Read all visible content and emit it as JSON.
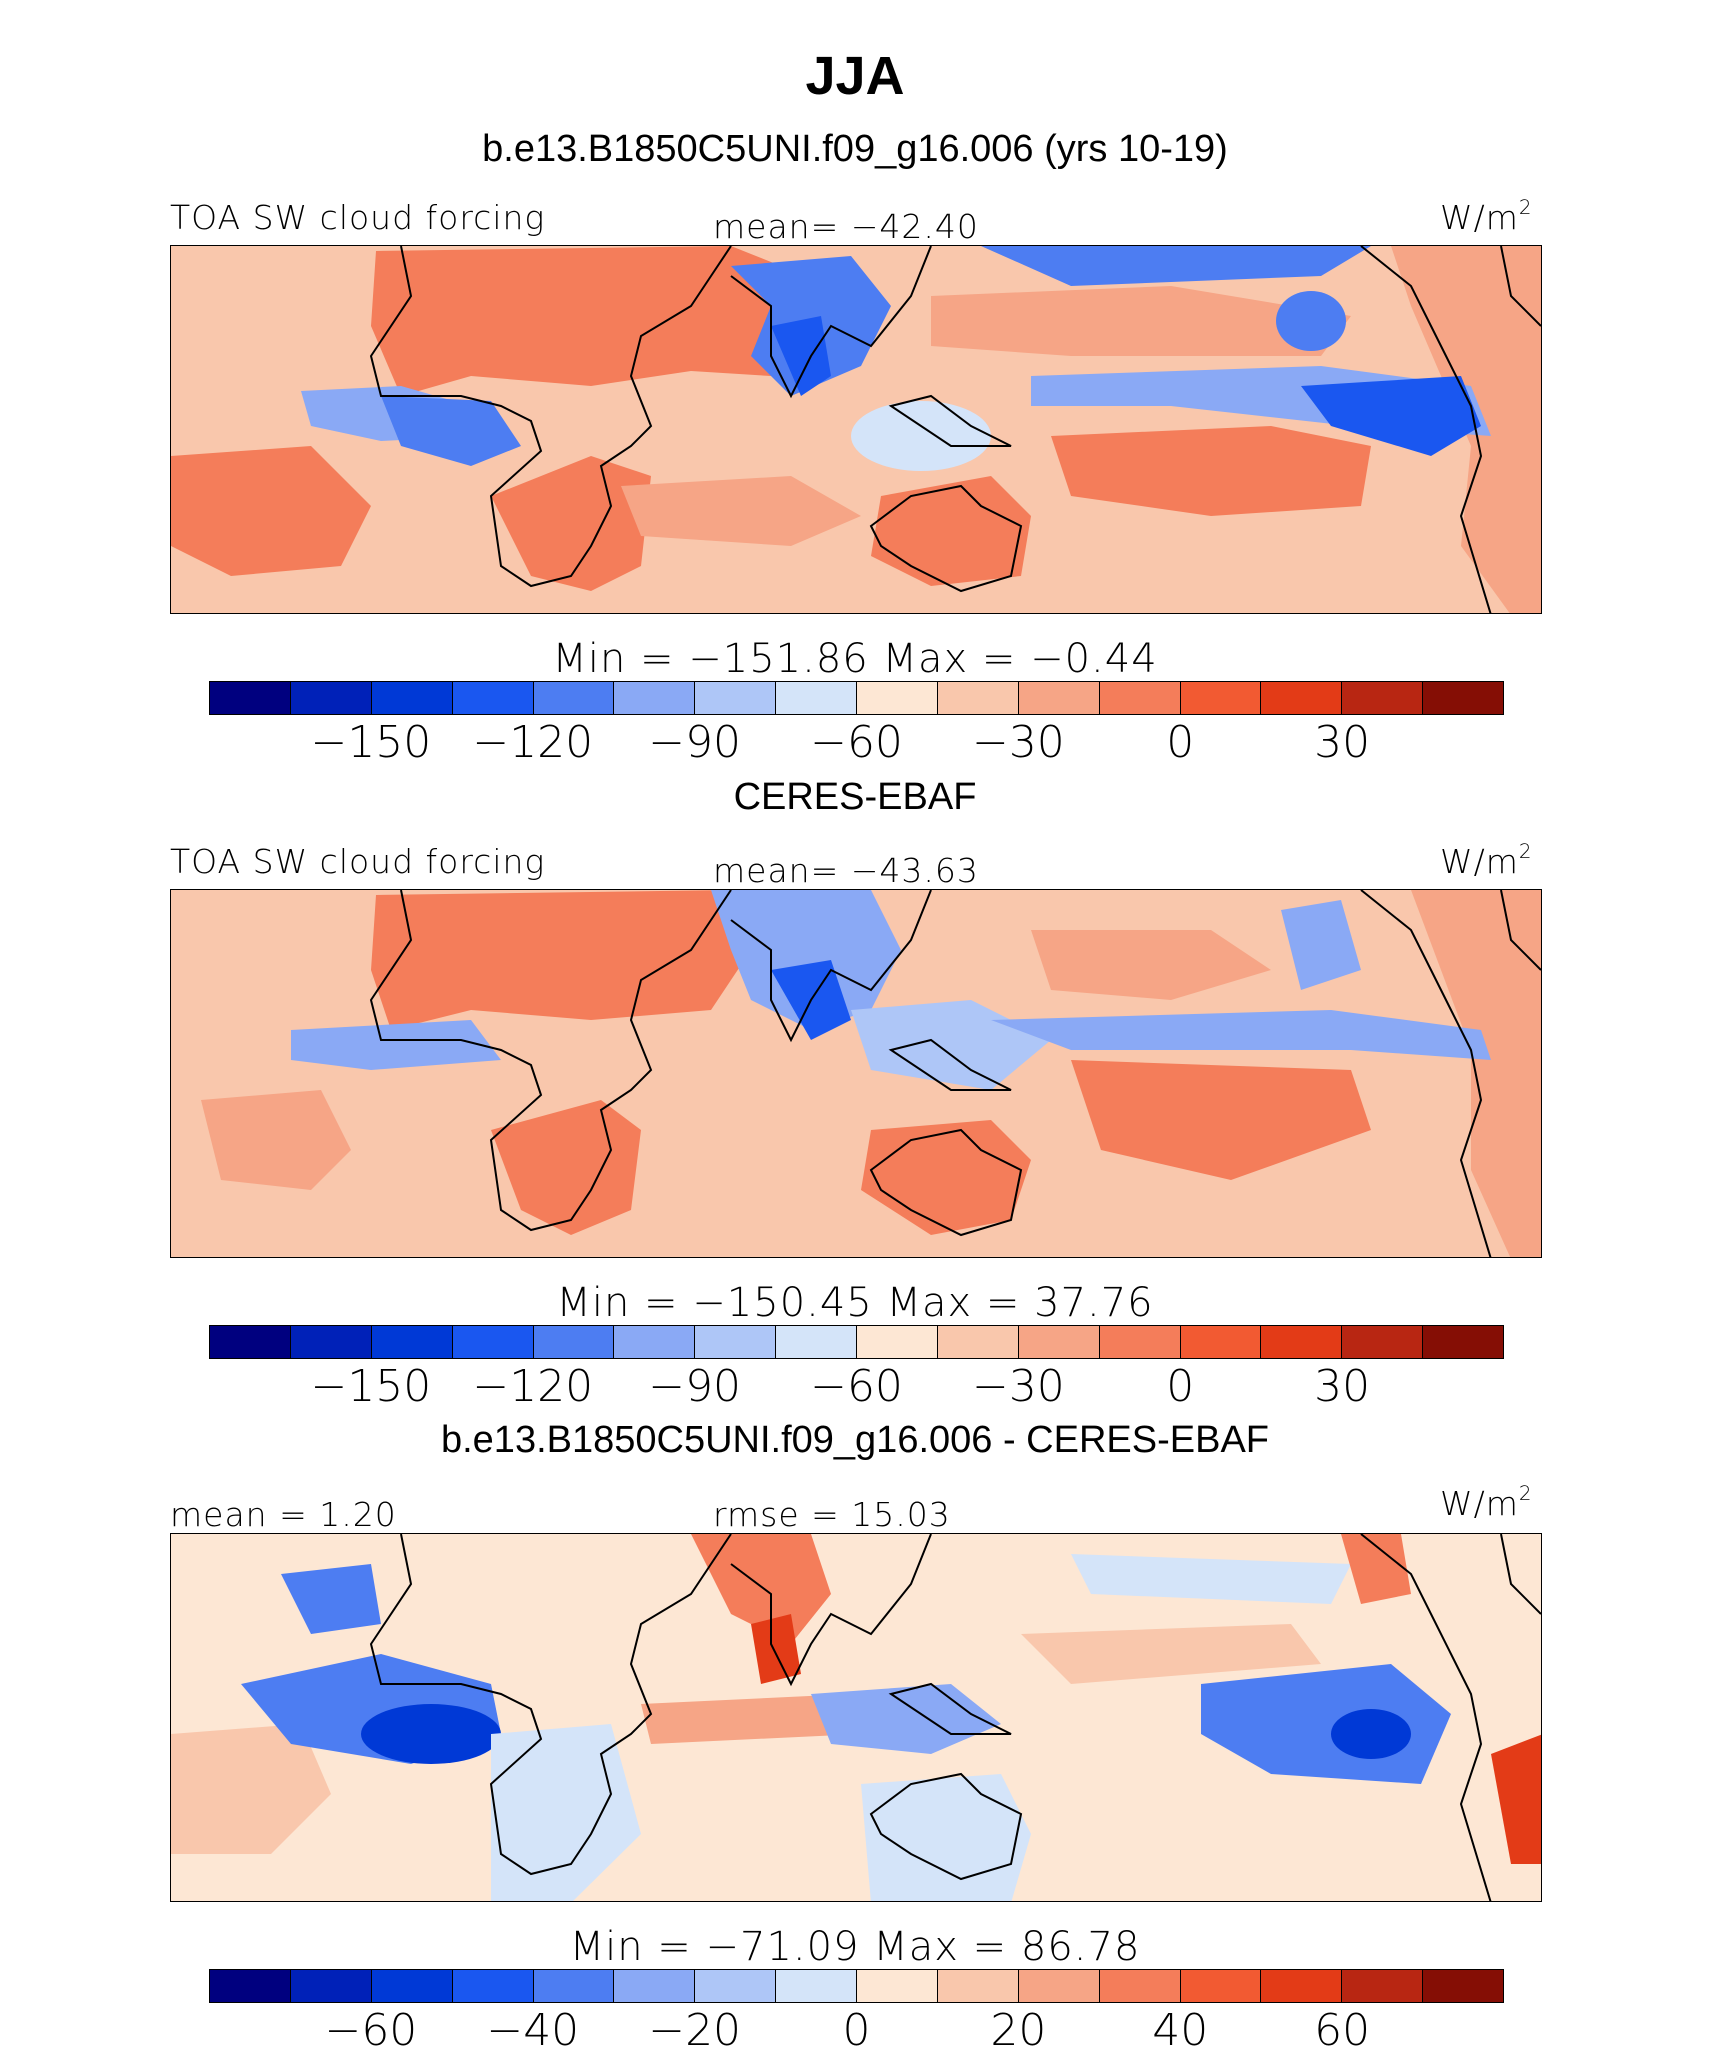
{
  "header": {
    "season": "JJA",
    "model_title": "b.e13.B1850C5UNI.f09_g16.006 (yrs 10-19)"
  },
  "panels": [
    {
      "left_label": "TOA SW cloud forcing",
      "center_label": "mean=  −42.40",
      "unit_base": "W/m",
      "unit_exp": "2",
      "stats": "Min  =  −151.86  Max  =   −0.44",
      "colors": [
        "#00007f",
        "#0021b8",
        "#0039d6",
        "#1a57f0",
        "#4d7df2",
        "#8aa9f5",
        "#aec6f7",
        "#d4e4f9",
        "#fde7d4",
        "#f9c7ac",
        "#f6a586",
        "#f47d5a",
        "#f25a32",
        "#e33b17",
        "#b82612",
        "#850e05"
      ],
      "ticks": [
        "−150",
        "−120",
        "−90",
        "−60",
        "−30",
        "0",
        "30"
      ]
    },
    {
      "subtitle": "CERES-EBAF",
      "left_label": "TOA SW cloud forcing",
      "center_label": "mean=  −43.63",
      "unit_base": "W/m",
      "unit_exp": "2",
      "stats": "Min  =  −150.45  Max  =   37.76",
      "colors": [
        "#00007f",
        "#0021b8",
        "#0039d6",
        "#1a57f0",
        "#4d7df2",
        "#8aa9f5",
        "#aec6f7",
        "#d4e4f9",
        "#fde7d4",
        "#f9c7ac",
        "#f6a586",
        "#f47d5a",
        "#f25a32",
        "#e33b17",
        "#b82612",
        "#850e05"
      ],
      "ticks": [
        "−150",
        "−120",
        "−90",
        "−60",
        "−30",
        "0",
        "30"
      ]
    },
    {
      "subtitle": "b.e13.B1850C5UNI.f09_g16.006 - CERES-EBAF",
      "left_label": "mean  =    1.20",
      "center_label": "rmse  =   15.03",
      "unit_base": "W/m",
      "unit_exp": "2",
      "stats": "Min  =  −71.09  Max  =   86.78",
      "colors": [
        "#00007f",
        "#0021b8",
        "#0039d6",
        "#1a57f0",
        "#4d7df2",
        "#8aa9f5",
        "#aec6f7",
        "#d4e4f9",
        "#fde7d4",
        "#f9c7ac",
        "#f6a586",
        "#f47d5a",
        "#f25a32",
        "#e33b17",
        "#b82612",
        "#850e05"
      ],
      "ticks": [
        "−60",
        "−40",
        "−20",
        "0",
        "20",
        "40",
        "60"
      ]
    }
  ]
}
